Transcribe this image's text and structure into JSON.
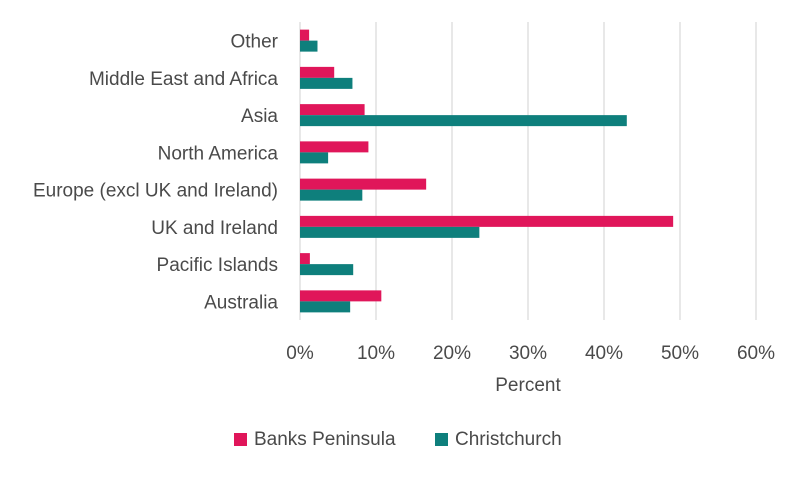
{
  "chart_data": {
    "type": "bar",
    "orientation": "horizontal",
    "categories": [
      "Other",
      "Middle East and Africa",
      "Asia",
      "North America",
      "Europe (excl UK and Ireland)",
      "UK and Ireland",
      "Pacific Islands",
      "Australia"
    ],
    "series": [
      {
        "name": "Banks Peninsula",
        "color": "#e0165a",
        "values": [
          1.2,
          4.5,
          8.5,
          9.0,
          16.6,
          49.1,
          1.3,
          10.7
        ]
      },
      {
        "name": "Christchurch",
        "color": "#0e7f7c",
        "values": [
          2.3,
          6.9,
          43.0,
          3.7,
          8.2,
          23.6,
          7.0,
          6.6
        ]
      }
    ],
    "xlabel": "Percent",
    "ylabel": "",
    "xlim": [
      0,
      60
    ],
    "xticks": [
      "0%",
      "10%",
      "20%",
      "30%",
      "40%",
      "50%",
      "60%"
    ],
    "grid": "vertical",
    "legend_position": "bottom"
  }
}
